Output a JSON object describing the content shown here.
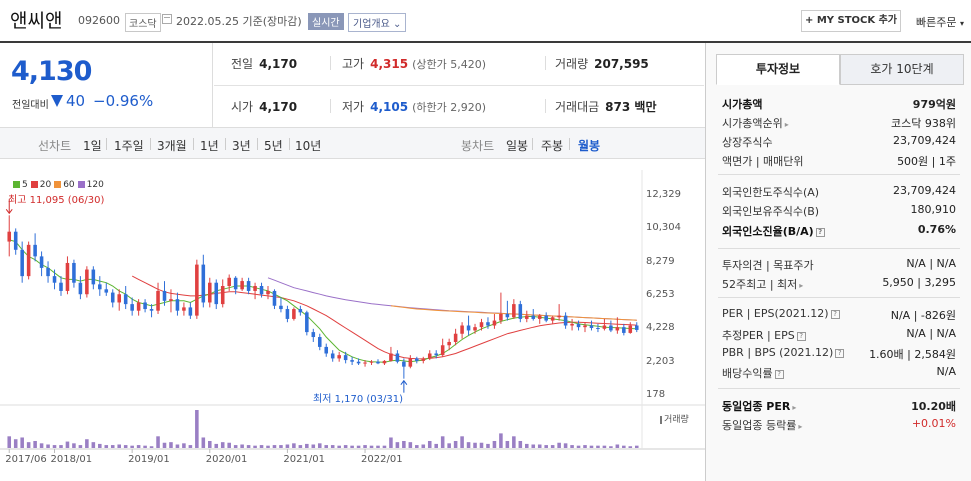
{
  "header": {
    "stock_name": "앤씨앤",
    "stock_code": "092600",
    "market": "코스닥",
    "date": "2022.05.25",
    "date_suffix": "기준(장마감)",
    "realtime_label": "실시간",
    "overview_label": "기업개요",
    "mystock_label": "+ MY STOCK 추가",
    "quick_order_label": "빠른주문"
  },
  "price": {
    "current": "4,130",
    "change_label": "전일대비",
    "change": "40",
    "change_pct": "−0.96%",
    "color_down": "#1e5ccc",
    "color_up": "#d12b2b"
  },
  "stats": {
    "prev_label": "전일",
    "prev": "4,170",
    "high_label": "고가",
    "high": "4,315",
    "upper_limit": "(상한가 5,420)",
    "volume_label": "거래량",
    "volume": "207,595",
    "open_label": "시가",
    "open": "4,170",
    "low_label": "저가",
    "low": "4,105",
    "lower_limit": "(하한가 2,920)",
    "amount_label": "거래대금",
    "amount": "873 백만"
  },
  "periods": {
    "line_chart": "선차트",
    "day1": "1일",
    "week1": "1주일",
    "month3": "3개월",
    "year1": "1년",
    "year3": "3년",
    "year5": "5년",
    "year10": "10년",
    "candle_chart": "봉차트",
    "daily": "일봉",
    "weekly": "주봉",
    "monthly": "월봉"
  },
  "chart_data": {
    "type": "candlestick",
    "legend": [
      {
        "name": "5",
        "color": "#5cb531"
      },
      {
        "name": "20",
        "color": "#e04040"
      },
      {
        "name": "60",
        "color": "#f0933a"
      },
      {
        "name": "120",
        "color": "#9a70c8"
      }
    ],
    "high_annotation": "최고 11,095 (06/30)",
    "low_annotation": "최저 1,170 (03/31)",
    "y_ticks": [
      "12,329",
      "10,304",
      "8,279",
      "6,253",
      "4,228",
      "2,203",
      "178"
    ],
    "x_ticks": [
      "2017/06",
      "2018/01",
      "2019/01",
      "2020/01",
      "2021/01",
      "2022/01"
    ],
    "ylim": [
      178,
      12329
    ],
    "volume_label": "거래량",
    "candles": [
      [
        9500,
        11095,
        8600,
        10100
      ],
      [
        10100,
        10300,
        8700,
        9000
      ],
      [
        9000,
        9500,
        7000,
        7400
      ],
      [
        7400,
        9500,
        7200,
        9300
      ],
      [
        9300,
        10000,
        8300,
        8600
      ],
      [
        8600,
        8900,
        7400,
        7900
      ],
      [
        7900,
        8300,
        7000,
        7400
      ],
      [
        7400,
        7800,
        6600,
        7000
      ],
      [
        7000,
        7400,
        6200,
        6500
      ],
      [
        6500,
        8600,
        6300,
        8200
      ],
      [
        8200,
        8400,
        6700,
        7000
      ],
      [
        7000,
        7400,
        6000,
        6300
      ],
      [
        6300,
        8000,
        6100,
        7800
      ],
      [
        7800,
        8000,
        6600,
        6900
      ],
      [
        6900,
        7400,
        6200,
        6600
      ],
      [
        6600,
        7000,
        6200,
        6400
      ],
      [
        6400,
        6600,
        5500,
        5800
      ],
      [
        5800,
        6600,
        5300,
        6300
      ],
      [
        6300,
        6800,
        5400,
        5700
      ],
      [
        5700,
        6100,
        5000,
        5300
      ],
      [
        5300,
        6000,
        5000,
        5800
      ],
      [
        5800,
        6000,
        5200,
        5400
      ],
      [
        5400,
        5700,
        4900,
        5300
      ],
      [
        5300,
        7000,
        5100,
        6500
      ],
      [
        6500,
        7100,
        5600,
        5900
      ],
      [
        5900,
        6600,
        5200,
        6000
      ],
      [
        6000,
        6400,
        5000,
        5300
      ],
      [
        5300,
        5800,
        5000,
        5500
      ],
      [
        5500,
        5800,
        4800,
        5000
      ],
      [
        5000,
        8400,
        4800,
        8100
      ],
      [
        8100,
        8700,
        5500,
        5800
      ],
      [
        5800,
        7300,
        5500,
        7000
      ],
      [
        7000,
        7200,
        5400,
        5700
      ],
      [
        5700,
        7200,
        5500,
        6800
      ],
      [
        6800,
        7500,
        6500,
        7300
      ],
      [
        7300,
        7400,
        6300,
        6600
      ],
      [
        6600,
        7300,
        6500,
        7100
      ],
      [
        7100,
        7300,
        6300,
        6500
      ],
      [
        6500,
        7000,
        6000,
        6800
      ],
      [
        6800,
        7000,
        6100,
        6300
      ],
      [
        6300,
        6800,
        6000,
        6500
      ],
      [
        6500,
        6600,
        5400,
        5600
      ],
      [
        5600,
        6100,
        5200,
        5400
      ],
      [
        5400,
        5600,
        4600,
        4800
      ],
      [
        4800,
        5500,
        4700,
        5400
      ],
      [
        5400,
        5600,
        5000,
        5200
      ],
      [
        5200,
        5300,
        3800,
        4000
      ],
      [
        4000,
        4200,
        3400,
        3700
      ],
      [
        3700,
        3900,
        2900,
        3100
      ],
      [
        3100,
        3300,
        2500,
        2700
      ],
      [
        2700,
        2900,
        2200,
        2400
      ],
      [
        2400,
        2800,
        2200,
        2600
      ],
      [
        2600,
        2800,
        2100,
        2300
      ],
      [
        2300,
        2500,
        2000,
        2200
      ],
      [
        2200,
        2400,
        2000,
        2100
      ],
      [
        2100,
        2300,
        1900,
        2150
      ],
      [
        2150,
        2300,
        2000,
        2200
      ],
      [
        2200,
        2350,
        2050,
        2100
      ],
      [
        2100,
        2300,
        2000,
        2250
      ],
      [
        2250,
        3100,
        2200,
        2700
      ],
      [
        2700,
        2900,
        2100,
        2200
      ],
      [
        2200,
        2400,
        1170,
        1900
      ],
      [
        1900,
        2600,
        1800,
        2400
      ],
      [
        2400,
        2500,
        2100,
        2250
      ],
      [
        2250,
        2500,
        2100,
        2400
      ],
      [
        2400,
        2900,
        2300,
        2700
      ],
      [
        2700,
        2900,
        2400,
        2600
      ],
      [
        2600,
        3600,
        2500,
        3200
      ],
      [
        3200,
        3600,
        2900,
        3400
      ],
      [
        3400,
        4200,
        3200,
        3900
      ],
      [
        3900,
        4600,
        3600,
        4400
      ],
      [
        4400,
        5000,
        3800,
        4100
      ],
      [
        4100,
        4500,
        3900,
        4300
      ],
      [
        4300,
        4800,
        4100,
        4600
      ],
      [
        4600,
        4900,
        4200,
        4400
      ],
      [
        4400,
        5100,
        4200,
        4700
      ],
      [
        4700,
        6400,
        4500,
        5100
      ],
      [
        5100,
        5900,
        4700,
        4900
      ],
      [
        4900,
        6000,
        4800,
        5700
      ],
      [
        5700,
        5900,
        4600,
        4800
      ],
      [
        4800,
        5300,
        4600,
        5000
      ],
      [
        5000,
        5400,
        4700,
        4800
      ],
      [
        4800,
        5100,
        4500,
        5000
      ],
      [
        5000,
        5200,
        4600,
        4700
      ],
      [
        4700,
        5000,
        4500,
        4900
      ],
      [
        4900,
        5700,
        4700,
        5000
      ],
      [
        5000,
        5200,
        4200,
        4400
      ],
      [
        4400,
        4800,
        4100,
        4500
      ],
      [
        4500,
        4700,
        4100,
        4300
      ],
      [
        4300,
        4600,
        4000,
        4400
      ],
      [
        4400,
        4700,
        4100,
        4250
      ],
      [
        4250,
        4500,
        4000,
        4200
      ],
      [
        4200,
        4800,
        4100,
        4400
      ],
      [
        4400,
        4700,
        4000,
        4100
      ],
      [
        4100,
        4900,
        3900,
        4300
      ],
      [
        4300,
        4500,
        3800,
        3950
      ],
      [
        3950,
        4600,
        3900,
        4400
      ],
      [
        4400,
        4600,
        4000,
        4130
      ]
    ],
    "volumes": [
      20,
      15,
      18,
      10,
      12,
      8,
      6,
      5,
      5,
      11,
      8,
      5,
      15,
      10,
      7,
      5,
      5,
      6,
      5,
      4,
      5,
      4,
      3,
      20,
      9,
      10,
      6,
      8,
      5,
      65,
      18,
      12,
      7,
      10,
      9,
      5,
      6,
      5,
      4,
      5,
      4,
      5,
      5,
      6,
      8,
      5,
      7,
      6,
      8,
      5,
      5,
      4,
      5,
      4,
      4,
      5,
      4,
      4,
      4,
      18,
      10,
      12,
      10,
      5,
      6,
      12,
      7,
      20,
      8,
      12,
      20,
      10,
      9,
      9,
      7,
      12,
      25,
      12,
      20,
      12,
      7,
      6,
      6,
      5,
      5,
      9,
      8,
      5,
      4,
      5,
      4,
      4,
      4,
      3,
      6,
      4,
      3,
      4
    ],
    "ma5": [
      9600,
      9500,
      9000,
      8600,
      8400,
      8100,
      7900,
      7600,
      7300,
      7200,
      7200,
      7100,
      7200,
      7200,
      7100,
      7000,
      6800,
      6500,
      6300,
      6000,
      5800,
      5700,
      5600,
      5700,
      5800,
      5900,
      5900,
      5900,
      5800,
      6000,
      6200,
      6300,
      6500,
      6600,
      6700,
      6800,
      6800,
      6800,
      6700,
      6600,
      6500,
      6300,
      6100,
      5900,
      5600,
      5300,
      5000,
      4600,
      4200,
      3700,
      3300,
      2900,
      2700,
      2500,
      2350,
      2250,
      2200,
      2180,
      2170,
      2250,
      2300,
      2250,
      2200,
      2250,
      2300,
      2450,
      2550,
      2700,
      2950,
      3250,
      3550,
      3800,
      4000,
      4200,
      4350,
      4500,
      4650,
      4750,
      4850,
      4900,
      4950,
      4950,
      4900,
      4850,
      4800,
      4750,
      4700,
      4600,
      4500,
      4450,
      4400,
      4350,
      4300,
      4280,
      4260,
      4240,
      4220,
      4200
    ],
    "ma20": [
      null,
      null,
      null,
      null,
      null,
      null,
      null,
      null,
      null,
      null,
      null,
      null,
      null,
      null,
      null,
      null,
      null,
      null,
      null,
      7400,
      7200,
      7000,
      6800,
      6600,
      6450,
      6350,
      6300,
      6250,
      6200,
      6200,
      6250,
      6300,
      6350,
      6400,
      6450,
      6450,
      6400,
      6350,
      6300,
      6250,
      6200,
      6150,
      6100,
      6000,
      5900,
      5750,
      5600,
      5400,
      5200,
      5000,
      4750,
      4500,
      4250,
      4000,
      3750,
      3500,
      3250,
      3000,
      2800,
      2650,
      2550,
      2450,
      2400,
      2380,
      2370,
      2400,
      2450,
      2500,
      2600,
      2700,
      2850,
      3000,
      3150,
      3300,
      3450,
      3600,
      3750,
      3900,
      4000,
      4100,
      4200,
      4300,
      4380,
      4450,
      4500,
      4550,
      4580,
      4600,
      4600,
      4580,
      4560,
      4540,
      4520,
      4500,
      4480,
      4460,
      4440,
      4420
    ],
    "ma60": [
      null,
      null,
      null,
      null,
      null,
      null,
      null,
      null,
      null,
      null,
      null,
      null,
      null,
      null,
      null,
      null,
      null,
      null,
      null,
      null,
      null,
      null,
      null,
      null,
      null,
      null,
      null,
      null,
      null,
      null,
      null,
      null,
      null,
      null,
      null,
      null,
      null,
      null,
      null,
      null,
      null,
      null,
      null,
      null,
      null,
      null,
      null,
      null,
      null,
      null,
      null,
      null,
      null,
      null,
      null,
      null,
      null,
      null,
      null,
      5600,
      5550,
      5500,
      5450,
      5400,
      5380,
      5350,
      5320,
      5300,
      5280,
      5260,
      5240,
      5220,
      5200,
      5180,
      5160,
      5150,
      5130,
      5120,
      5100,
      5080,
      5060,
      5040,
      5020,
      5000,
      4980,
      4960,
      4940,
      4920,
      4900,
      4880,
      4860,
      4840,
      4820,
      4800,
      4780,
      4760,
      4740,
      4720
    ],
    "ma120": [
      null,
      null,
      null,
      null,
      null,
      null,
      null,
      null,
      null,
      null,
      null,
      null,
      null,
      null,
      null,
      null,
      null,
      null,
      null,
      null,
      null,
      null,
      null,
      null,
      null,
      null,
      null,
      null,
      null,
      null,
      null,
      null,
      null,
      null,
      null,
      null,
      null,
      null,
      null,
      null,
      7300,
      7150,
      7000,
      6850,
      6700,
      6600,
      6500,
      6400,
      6300,
      6200,
      6120,
      6040,
      5960,
      5900,
      5840,
      5780,
      5720,
      5680,
      5640,
      5600,
      5560,
      5520,
      5480,
      5450,
      5420,
      5390,
      5360,
      5330,
      5300,
      5280,
      5260,
      5240,
      5220,
      5200,
      5180,
      5160,
      5140,
      5120,
      5100,
      5080,
      5060,
      5040,
      5020,
      5000,
      4980,
      4960,
      4940,
      4920,
      4900,
      4880,
      4860,
      4840,
      4820,
      4800,
      4780,
      4760,
      4740,
      4720
    ]
  },
  "right_panel": {
    "tab_active": "투자정보",
    "tab_inactive": "호가 10단계",
    "rows": [
      {
        "k": "시가총액",
        "v": "979억원",
        "kb": true,
        "vb": true
      },
      {
        "k": "시가총액순위",
        "v": "코스닥 938위",
        "caret": true
      },
      {
        "k": "상장주식수",
        "v": "23,709,424"
      },
      {
        "k": "액면가 | 매매단위",
        "v": "500원 | 1주"
      },
      {
        "k": "외국인한도주식수(A)",
        "v": "23,709,424"
      },
      {
        "k": "외국인보유주식수(B)",
        "v": "180,910"
      },
      {
        "k": "외국인소진율(B/A)",
        "v": "0.76%",
        "kb": true,
        "vb": true,
        "q": true
      },
      {
        "k": "투자의견 | 목표주가",
        "v": "N/A | N/A"
      },
      {
        "k": "52주최고 | 최저",
        "v": "5,950 | 3,295",
        "caret": true
      },
      {
        "k": "PER | EPS(2021.12)",
        "v": "N/A | -826원",
        "q": true
      },
      {
        "k": "추정PER | EPS",
        "v": "N/A | N/A",
        "q": true
      },
      {
        "k": "PBR | BPS (2021.12)",
        "v": "1.60배 | 2,584원",
        "q": true
      },
      {
        "k": "배당수익률",
        "v": "N/A",
        "q": true
      },
      {
        "k": "동일업종 PER",
        "v": "10.20배",
        "kb": true,
        "vb": true,
        "caret": true
      },
      {
        "k": "동일업종 등락률",
        "v": "+0.01%",
        "red": true,
        "caret": true
      }
    ]
  }
}
